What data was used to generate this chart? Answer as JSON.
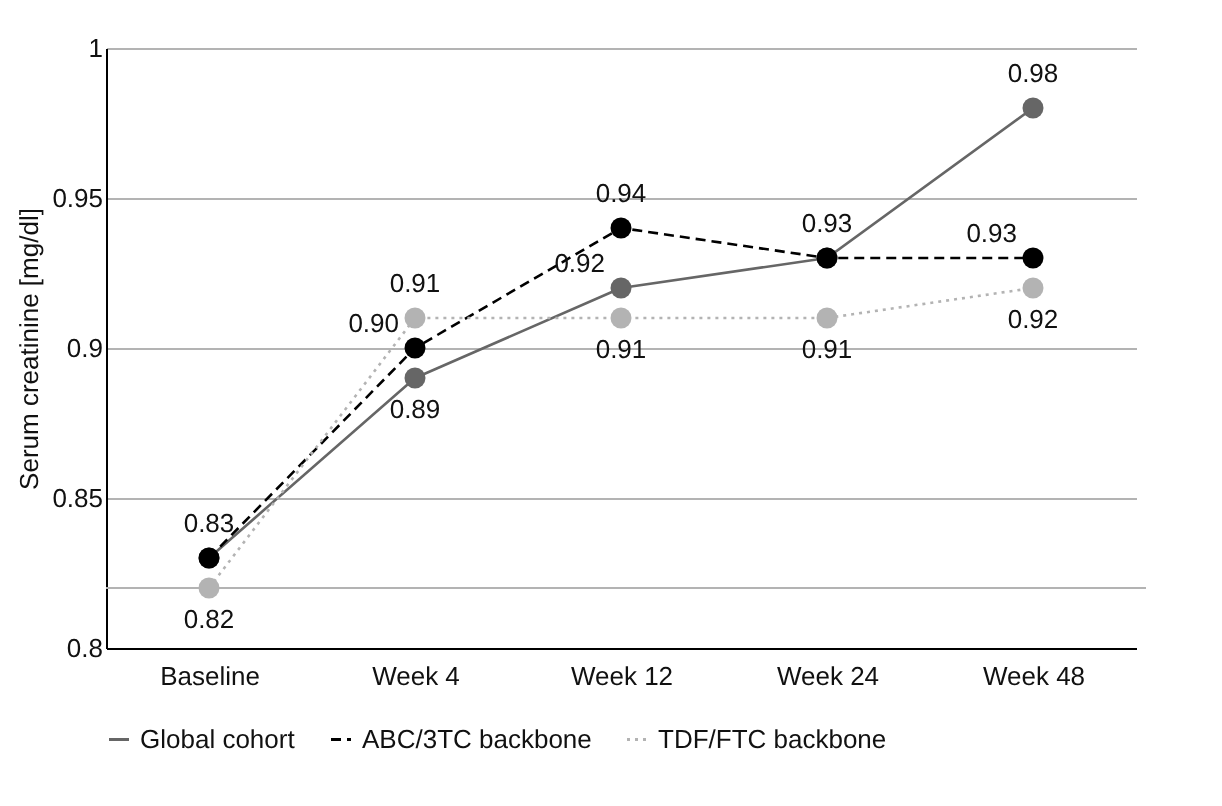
{
  "chart_data": {
    "type": "line",
    "ylabel": "Serum creatinine [mg/dl]",
    "categories": [
      "Baseline",
      "Week 4",
      "Week 12",
      "Week 24",
      "Week 48"
    ],
    "series": [
      {
        "name": "Global cohort",
        "color": "#666666",
        "line_style": "solid",
        "values": [
          0.83,
          0.89,
          0.92,
          0.93,
          0.98
        ],
        "value_labels": [
          null,
          "0.89",
          "0.92",
          null,
          "0.98"
        ]
      },
      {
        "name": "ABC/3TC backbone",
        "color": "#000000",
        "line_style": "dashed",
        "values": [
          0.83,
          0.9,
          0.94,
          0.93,
          0.93
        ],
        "value_labels": [
          "0.83",
          "0.90",
          "0.94",
          "0.93",
          "0.93"
        ]
      },
      {
        "name": "TDF/FTC backbone",
        "color": "#b3b3b3",
        "line_style": "dotted",
        "values": [
          0.82,
          0.91,
          0.91,
          0.91,
          0.92
        ],
        "value_labels": [
          "0.82",
          "0.91",
          "0.91",
          "0.91",
          "0.92"
        ]
      }
    ],
    "ylim": [
      0.8,
      1
    ],
    "yticks": [
      0.8,
      0.85,
      0.9,
      0.95,
      1
    ],
    "ref_lines": [
      {
        "axis": "y",
        "value": 0.82,
        "color": "#b3b3b3"
      }
    ],
    "grid": "y",
    "legend": "bottom",
    "marker": "circle"
  }
}
